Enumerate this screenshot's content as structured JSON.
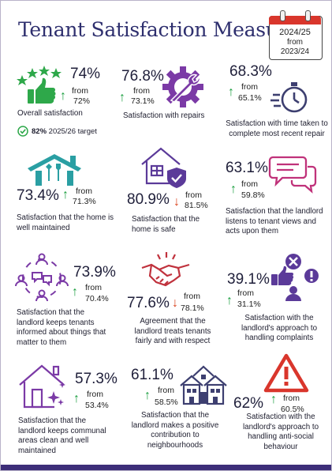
{
  "title": "Tenant Satisfaction Measures",
  "period": {
    "year": "2024/25",
    "from_label": "from",
    "prev_year": "2023/24"
  },
  "measures": [
    {
      "pct": "74%",
      "from_label": "from",
      "prev": "72%",
      "direction": "up",
      "desc": "Overall satisfaction",
      "icon": "thumbs-up-stars-icon"
    },
    {
      "pct": "76.8%",
      "from_label": "from",
      "prev": "73.1%",
      "direction": "up",
      "desc": "Satisfaction with repairs",
      "icon": "wrench-gear-icon"
    },
    {
      "pct": "68.3%",
      "from_label": "from",
      "prev": "65.1%",
      "direction": "up",
      "desc": "Satisfaction with time taken to complete most recent repair",
      "icon": "stopwatch-icon"
    },
    {
      "pct": "73.4%",
      "from_label": "from",
      "prev": "71.3%",
      "direction": "up",
      "desc": "Satisfaction that the home is well maintained",
      "icon": "house-tools-icon"
    },
    {
      "pct": "80.9%",
      "from_label": "from",
      "prev": "81.5%",
      "direction": "down",
      "desc": "Satisfaction that the home is safe",
      "icon": "house-shield-icon"
    },
    {
      "pct": "63.1%",
      "from_label": "from",
      "prev": "59.8%",
      "direction": "up",
      "desc": "Satisfaction that the landlord listens to tenant views and acts upon them",
      "icon": "speech-bubbles-icon"
    },
    {
      "pct": "73.9%",
      "from_label": "from",
      "prev": "70.4%",
      "direction": "up",
      "desc": "Satisfaction that the landlord keeps tenants informed about things that matter to them",
      "icon": "people-network-icon"
    },
    {
      "pct": "77.6%",
      "from_label": "from",
      "prev": "78.1%",
      "direction": "down",
      "desc": "Agreement that the landlord treats tenants fairly and with respect",
      "icon": "handshake-icon"
    },
    {
      "pct": "39.1%",
      "from_label": "from",
      "prev": "31.1%",
      "direction": "up",
      "desc": "Satisfaction with the landlord's approach to handling complaints",
      "icon": "complaints-icon"
    },
    {
      "pct": "57.3%",
      "from_label": "from",
      "prev": "53.4%",
      "direction": "up",
      "desc": "Satisfaction that the landlord keeps communal areas clean and well maintained",
      "icon": "clean-house-icon"
    },
    {
      "pct": "61.1%",
      "from_label": "from",
      "prev": "58.5%",
      "direction": "up",
      "desc": "Satisfaction that the landlord makes a positive contribution to neighbourhoods",
      "icon": "neighbourhood-houses-icon"
    },
    {
      "pct": "62%",
      "from_label": "from",
      "prev": "60.5%",
      "direction": "up",
      "desc": "Satisfaction with the landlord's approach to handling anti-social behaviour",
      "icon": "warning-triangle-icon"
    }
  ],
  "target": {
    "value": "82%",
    "label": "2025/26 target"
  },
  "arrows": {
    "up": "↑",
    "down": "↓"
  },
  "colors": {
    "title": "#2e2f6e",
    "accent": "#7b3aa6",
    "up": "#1a9e3f",
    "down": "#d9421d",
    "warning": "#d9362c",
    "border": "#3d2e79"
  }
}
